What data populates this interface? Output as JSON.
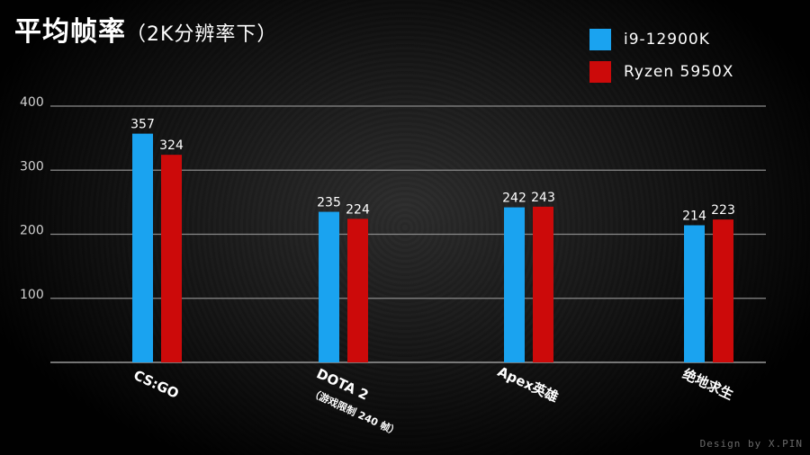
{
  "title": {
    "main": "平均帧率",
    "sub": "（2K分辨率下）"
  },
  "legend": [
    {
      "label": "i9-12900K",
      "color": "#1aa3f0"
    },
    {
      "label": "Ryzen 5950X",
      "color": "#cc0a0a"
    }
  ],
  "credit": "Design by X.PIN",
  "chart_data": {
    "type": "bar",
    "title": "平均帧率（2K分辨率下）",
    "categories": [
      "CS:GO",
      "DOTA 2",
      "Apex英雄",
      "绝地求生"
    ],
    "category_notes": [
      "",
      "（游戏限制 240 帧）",
      "",
      ""
    ],
    "series": [
      {
        "name": "i9-12900K",
        "values": [
          357,
          235,
          242,
          214
        ],
        "color": "#1aa3f0"
      },
      {
        "name": "Ryzen 5950X",
        "values": [
          324,
          224,
          243,
          223
        ],
        "color": "#cc0a0a"
      }
    ],
    "bar_heights_note": "",
    "yticks": [
      100,
      200,
      300,
      400
    ],
    "ylim": [
      0,
      400
    ],
    "grid": true,
    "legend_position": "top-right"
  }
}
